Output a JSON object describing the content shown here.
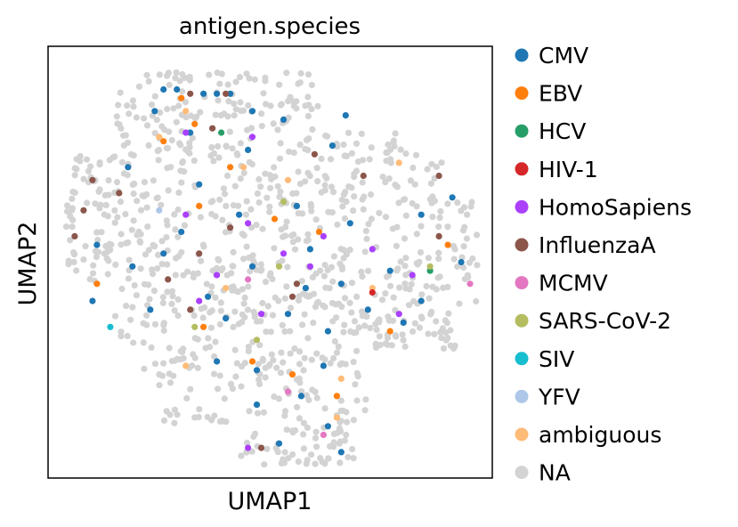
{
  "chart_data": {
    "type": "scatter",
    "title": "antigen.species",
    "xlabel": "UMAP1",
    "ylabel": "UMAP2",
    "ticks": "hidden",
    "grid": false,
    "legend_placement": "right-outside",
    "xlim": [
      -5,
      5
    ],
    "ylim": [
      -5,
      5
    ],
    "categories": [
      {
        "name": "CMV",
        "color": "#1f77b4"
      },
      {
        "name": "EBV",
        "color": "#ff7f0e"
      },
      {
        "name": "HCV",
        "color": "#279e68"
      },
      {
        "name": "HIV-1",
        "color": "#d62728"
      },
      {
        "name": "HomoSapiens",
        "color": "#aa40fc"
      },
      {
        "name": "InfluenzaA",
        "color": "#8c564b"
      },
      {
        "name": "MCMV",
        "color": "#e377c2"
      },
      {
        "name": "SARS-CoV-2",
        "color": "#b5bd61"
      },
      {
        "name": "SIV",
        "color": "#17becf"
      },
      {
        "name": "YFV",
        "color": "#aec7e8"
      },
      {
        "name": "ambiguous",
        "color": "#ffbb78"
      },
      {
        "name": "NA",
        "color": "#d3d3d3"
      }
    ],
    "labeled_points": [
      {
        "x": -2.4,
        "y": 4.0,
        "category": "CMV"
      },
      {
        "x": -2.1,
        "y": 4.0,
        "category": "CMV"
      },
      {
        "x": -1.5,
        "y": 3.9,
        "category": "CMV"
      },
      {
        "x": -1.2,
        "y": 3.9,
        "category": "CMV"
      },
      {
        "x": -0.9,
        "y": 3.9,
        "category": "CMV"
      },
      {
        "x": -0.4,
        "y": 3.5,
        "category": "CMV"
      },
      {
        "x": -2.6,
        "y": 3.5,
        "category": "CMV"
      },
      {
        "x": -1.8,
        "y": 3.0,
        "category": "CMV"
      },
      {
        "x": -0.5,
        "y": 2.6,
        "category": "CMV"
      },
      {
        "x": 0.3,
        "y": 3.3,
        "category": "CMV"
      },
      {
        "x": 1.4,
        "y": 2.7,
        "category": "CMV"
      },
      {
        "x": 1.7,
        "y": 3.4,
        "category": "CMV"
      },
      {
        "x": -3.2,
        "y": 2.2,
        "category": "CMV"
      },
      {
        "x": -1.6,
        "y": 1.8,
        "category": "CMV"
      },
      {
        "x": -0.7,
        "y": 1.1,
        "category": "CMV"
      },
      {
        "x": 0.6,
        "y": 1.3,
        "category": "CMV"
      },
      {
        "x": 1.8,
        "y": 0.9,
        "category": "CMV"
      },
      {
        "x": 3.4,
        "y": 1.1,
        "category": "CMV"
      },
      {
        "x": 4.1,
        "y": 1.5,
        "category": "CMV"
      },
      {
        "x": -3.1,
        "y": -0.1,
        "category": "CMV"
      },
      {
        "x": -2.4,
        "y": 0.2,
        "category": "CMV"
      },
      {
        "x": -1.4,
        "y": -0.8,
        "category": "CMV"
      },
      {
        "x": -0.4,
        "y": -0.1,
        "category": "CMV"
      },
      {
        "x": 0.8,
        "y": -0.6,
        "category": "CMV"
      },
      {
        "x": 1.6,
        "y": -0.5,
        "category": "CMV"
      },
      {
        "x": 2.7,
        "y": -0.2,
        "category": "CMV"
      },
      {
        "x": 3.4,
        "y": -0.9,
        "category": "CMV"
      },
      {
        "x": 4.3,
        "y": 0.0,
        "category": "CMV"
      },
      {
        "x": -4.0,
        "y": -0.9,
        "category": "CMV"
      },
      {
        "x": -2.7,
        "y": -1.1,
        "category": "CMV"
      },
      {
        "x": -1.0,
        "y": -1.3,
        "category": "CMV"
      },
      {
        "x": 0.4,
        "y": -1.2,
        "category": "CMV"
      },
      {
        "x": 1.3,
        "y": -1.6,
        "category": "CMV"
      },
      {
        "x": 2.2,
        "y": -1.1,
        "category": "CMV"
      },
      {
        "x": -1.2,
        "y": -2.3,
        "category": "CMV"
      },
      {
        "x": -0.3,
        "y": -2.5,
        "category": "CMV"
      },
      {
        "x": 1.2,
        "y": -2.4,
        "category": "CMV"
      },
      {
        "x": -0.3,
        "y": -3.3,
        "category": "CMV"
      },
      {
        "x": 0.7,
        "y": -3.1,
        "category": "CMV"
      },
      {
        "x": 1.3,
        "y": -3.8,
        "category": "CMV"
      },
      {
        "x": 0.2,
        "y": -4.2,
        "category": "CMV"
      },
      {
        "x": 1.6,
        "y": -4.4,
        "category": "CMV"
      },
      {
        "x": 3.0,
        "y": -1.4,
        "category": "CMV"
      },
      {
        "x": -3.9,
        "y": 0.4,
        "category": "CMV"
      },
      {
        "x": -2.0,
        "y": 0.7,
        "category": "CMV"
      },
      {
        "x": 0.9,
        "y": 0.3,
        "category": "CMV"
      },
      {
        "x": -2.0,
        "y": 3.8,
        "category": "EBV"
      },
      {
        "x": -1.7,
        "y": 3.2,
        "category": "EBV"
      },
      {
        "x": -2.4,
        "y": 2.8,
        "category": "EBV"
      },
      {
        "x": -0.9,
        "y": 2.2,
        "category": "EBV"
      },
      {
        "x": -1.6,
        "y": 1.3,
        "category": "EBV"
      },
      {
        "x": 0.1,
        "y": 1.0,
        "category": "EBV"
      },
      {
        "x": 1.1,
        "y": 0.7,
        "category": "EBV"
      },
      {
        "x": 4.0,
        "y": 0.4,
        "category": "EBV"
      },
      {
        "x": -3.9,
        "y": -0.5,
        "category": "EBV"
      },
      {
        "x": -1.5,
        "y": -1.5,
        "category": "EBV"
      },
      {
        "x": 2.7,
        "y": -1.6,
        "category": "EBV"
      },
      {
        "x": -0.4,
        "y": -2.3,
        "category": "EBV"
      },
      {
        "x": 0.5,
        "y": -2.6,
        "category": "EBV"
      },
      {
        "x": 1.5,
        "y": -3.1,
        "category": "EBV"
      },
      {
        "x": -1.9,
        "y": 3.5,
        "category": "ambiguous"
      },
      {
        "x": -0.6,
        "y": 2.2,
        "category": "ambiguous"
      },
      {
        "x": 0.4,
        "y": 1.9,
        "category": "ambiguous"
      },
      {
        "x": 2.9,
        "y": 2.3,
        "category": "ambiguous"
      },
      {
        "x": -1.0,
        "y": -0.6,
        "category": "ambiguous"
      },
      {
        "x": 2.3,
        "y": -0.6,
        "category": "ambiguous"
      },
      {
        "x": -1.9,
        "y": -2.4,
        "category": "ambiguous"
      },
      {
        "x": 1.6,
        "y": -2.7,
        "category": "ambiguous"
      },
      {
        "x": 1.5,
        "y": -3.6,
        "category": "ambiguous"
      },
      {
        "x": -2.5,
        "y": 2.9,
        "category": "ambiguous"
      },
      {
        "x": -1.1,
        "y": 3.0,
        "category": "HCV"
      },
      {
        "x": 3.6,
        "y": -0.2,
        "category": "HCV"
      },
      {
        "x": 2.3,
        "y": -0.7,
        "category": "HIV-1"
      },
      {
        "x": -1.9,
        "y": 3.0,
        "category": "HomoSapiens"
      },
      {
        "x": -0.4,
        "y": 2.9,
        "category": "HomoSapiens"
      },
      {
        "x": -1.9,
        "y": 1.1,
        "category": "HomoSapiens"
      },
      {
        "x": -0.5,
        "y": 0.9,
        "category": "HomoSapiens"
      },
      {
        "x": 0.3,
        "y": 0.2,
        "category": "HomoSapiens"
      },
      {
        "x": -1.2,
        "y": -0.3,
        "category": "HomoSapiens"
      },
      {
        "x": 1.2,
        "y": 0.6,
        "category": "HomoSapiens"
      },
      {
        "x": -1.6,
        "y": -0.9,
        "category": "HomoSapiens"
      },
      {
        "x": 3.2,
        "y": -0.3,
        "category": "HomoSapiens"
      },
      {
        "x": -0.2,
        "y": -1.2,
        "category": "HomoSapiens"
      },
      {
        "x": 0.9,
        "y": -0.1,
        "category": "HomoSapiens"
      },
      {
        "x": -0.5,
        "y": -4.3,
        "category": "HomoSapiens"
      },
      {
        "x": 2.3,
        "y": 0.3,
        "category": "HomoSapiens"
      },
      {
        "x": 2.9,
        "y": -1.2,
        "category": "HomoSapiens"
      },
      {
        "x": -1.8,
        "y": 3.9,
        "category": "InfluenzaA"
      },
      {
        "x": -1.0,
        "y": 3.9,
        "category": "InfluenzaA"
      },
      {
        "x": -1.3,
        "y": 3.1,
        "category": "InfluenzaA"
      },
      {
        "x": 1.0,
        "y": 2.5,
        "category": "InfluenzaA"
      },
      {
        "x": 2.1,
        "y": 2.0,
        "category": "InfluenzaA"
      },
      {
        "x": -4.0,
        "y": 1.9,
        "category": "InfluenzaA"
      },
      {
        "x": -4.2,
        "y": 1.2,
        "category": "InfluenzaA"
      },
      {
        "x": -3.4,
        "y": 1.6,
        "category": "InfluenzaA"
      },
      {
        "x": -4.4,
        "y": 0.6,
        "category": "InfluenzaA"
      },
      {
        "x": -0.9,
        "y": 0.8,
        "category": "InfluenzaA"
      },
      {
        "x": -1.6,
        "y": 0.2,
        "category": "InfluenzaA"
      },
      {
        "x": -2.3,
        "y": -0.4,
        "category": "InfluenzaA"
      },
      {
        "x": 0.5,
        "y": -0.8,
        "category": "InfluenzaA"
      },
      {
        "x": 3.8,
        "y": 2.0,
        "category": "InfluenzaA"
      },
      {
        "x": 3.8,
        "y": 0.6,
        "category": "InfluenzaA"
      },
      {
        "x": 0.6,
        "y": -0.5,
        "category": "InfluenzaA"
      },
      {
        "x": -0.2,
        "y": -4.3,
        "category": "InfluenzaA"
      },
      {
        "x": -1.8,
        "y": -1.1,
        "category": "InfluenzaA"
      },
      {
        "x": 4.5,
        "y": -0.5,
        "category": "MCMV"
      },
      {
        "x": -0.5,
        "y": -0.4,
        "category": "MCMV"
      },
      {
        "x": 0.4,
        "y": -3.0,
        "category": "MCMV"
      },
      {
        "x": 1.2,
        "y": -4.0,
        "category": "MCMV"
      },
      {
        "x": 0.3,
        "y": 1.4,
        "category": "SARS-CoV-2"
      },
      {
        "x": 0.2,
        "y": -0.1,
        "category": "SARS-CoV-2"
      },
      {
        "x": -1.7,
        "y": -1.5,
        "category": "SARS-CoV-2"
      },
      {
        "x": 3.6,
        "y": -0.1,
        "category": "SARS-CoV-2"
      },
      {
        "x": -0.3,
        "y": -1.8,
        "category": "SARS-CoV-2"
      },
      {
        "x": -3.6,
        "y": -1.5,
        "category": "SIV"
      },
      {
        "x": -2.5,
        "y": 1.2,
        "category": "YFV"
      }
    ],
    "na_point_count": 1000
  }
}
